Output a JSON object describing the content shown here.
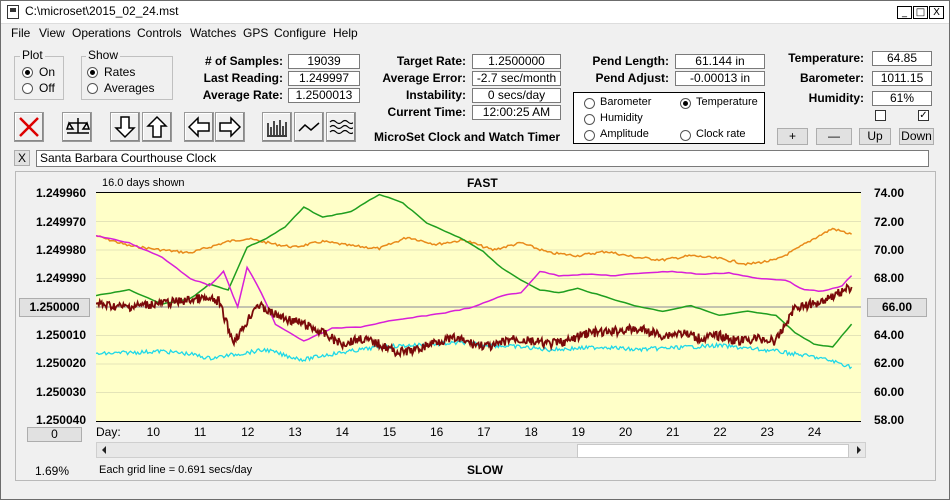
{
  "window": {
    "title": "C:\\microset\\2015_02_24.mst",
    "minimize": "_",
    "maximize": "□",
    "close": "X"
  },
  "menu": [
    "File",
    "View",
    "Operations",
    "Controls",
    "Watches",
    "GPS",
    "Configure",
    "Help"
  ],
  "plot_group": {
    "label": "Plot",
    "options": [
      "On",
      "Off"
    ],
    "selected": "On"
  },
  "show_group": {
    "label": "Show",
    "options": [
      "Rates",
      "Averages"
    ],
    "selected": "Rates"
  },
  "stats": {
    "samples_label": "# of Samples:",
    "samples": "19039",
    "last_reading_label": "Last Reading:",
    "last_reading": "1.249997",
    "average_rate_label": "Average Rate:",
    "average_rate": "1.2500013",
    "target_rate_label": "Target Rate:",
    "target_rate": "1.2500000",
    "average_error_label": "Average Error:",
    "average_error": "-2.7 sec/month",
    "instability_label": "Instability:",
    "instability": "0 secs/day",
    "current_time_label": "Current Time:",
    "current_time": "12:00:25 AM",
    "pend_length_label": "Pend Length:",
    "pend_length": "61.144 in",
    "pend_adjust_label": "Pend Adjust:",
    "pend_adjust": "-0.00013 in",
    "temperature_label": "Temperature:",
    "temperature": "64.85",
    "barometer_label": "Barometer:",
    "barometer": "1011.15",
    "humidity_label": "Humidity:",
    "humidity": "61%"
  },
  "app_caption": "MicroSet Clock and Watch Timer",
  "sensor_options": [
    {
      "label": "Barometer",
      "color": "#e88a1a",
      "selected": false
    },
    {
      "label": "Temperature",
      "color": "#1f9e1f",
      "selected": true
    },
    {
      "label": "Humidity",
      "color": "#d81fd8",
      "selected": false
    },
    {
      "label": "Amplitude",
      "color": "#1fd8e8",
      "selected": false
    },
    {
      "label": "Clock rate",
      "color": "#000000",
      "selected": false
    }
  ],
  "adjust_buttons": {
    "plus": "+",
    "minus": "—",
    "up": "Up",
    "down": "Down"
  },
  "checkboxes": [
    {
      "checked": false
    },
    {
      "checked": true
    }
  ],
  "clock_name": {
    "close": "X",
    "value": "Santa Barbara Courthouse Clock"
  },
  "graph": {
    "days_shown": "16.0 days shown",
    "fast_label": "FAST",
    "slow_label": "SLOW",
    "grid_note": "Each grid line = 0.691 secs/day",
    "percent": "1.69%",
    "left_button": "0",
    "right_button": "66.00",
    "center_rate": "1.250000",
    "day_label": "Day:"
  },
  "chart_data": {
    "type": "line",
    "x_unit": "day",
    "xlim": [
      8.8,
      25.0
    ],
    "day_ticks": [
      10,
      11,
      12,
      13,
      14,
      15,
      16,
      17,
      18,
      19,
      20,
      21,
      22,
      23,
      24
    ],
    "left_axis": {
      "ticks": [
        "1.249960",
        "1.249970",
        "1.249980",
        "1.249990",
        "1.250000",
        "1.250010",
        "1.250020",
        "1.250030",
        "1.250040"
      ],
      "ylim": [
        1.24996,
        1.25004
      ],
      "inverted": true
    },
    "right_axis": {
      "ticks": [
        "74.00",
        "72.00",
        "70.00",
        "68.00",
        "66.00",
        "64.00",
        "62.00",
        "60.00",
        "58.00"
      ],
      "ylim": [
        58.0,
        74.0
      ]
    },
    "series": [
      {
        "name": "Barometer",
        "color": "#e88a1a",
        "axis": "right",
        "x": [
          8.8,
          9.5,
          10.2,
          10.8,
          11.2,
          11.6,
          12.0,
          12.6,
          13.0,
          13.6,
          14.2,
          14.8,
          15.4,
          16.0,
          16.6,
          17.2,
          17.8,
          18.4,
          19.0,
          19.6,
          20.2,
          20.8,
          21.4,
          22.0,
          22.6,
          23.2,
          23.6,
          24.0,
          24.4,
          24.8
        ],
        "y": [
          71.0,
          70.3,
          70.0,
          69.8,
          70.2,
          70.6,
          70.8,
          70.4,
          70.2,
          70.6,
          70.3,
          70.1,
          70.9,
          70.4,
          70.7,
          70.0,
          70.5,
          69.8,
          69.6,
          69.9,
          69.5,
          69.3,
          69.6,
          69.4,
          69.0,
          69.3,
          70.0,
          70.8,
          71.5,
          71.1
        ]
      },
      {
        "name": "Temperature",
        "color": "#1f9e1f",
        "axis": "right",
        "x": [
          8.8,
          9.5,
          10.2,
          10.8,
          11.2,
          11.6,
          12.0,
          12.4,
          12.8,
          13.2,
          13.6,
          14.2,
          14.8,
          15.3,
          15.8,
          16.2,
          16.6,
          17.0,
          17.4,
          17.8,
          18.2,
          18.6,
          19.0,
          19.6,
          20.2,
          20.8,
          21.4,
          22.0,
          22.6,
          23.2,
          23.6,
          24.0,
          24.4,
          24.8
        ],
        "y": [
          66.8,
          67.2,
          66.2,
          66.6,
          67.6,
          67.2,
          70.2,
          70.8,
          71.6,
          73.0,
          72.3,
          72.7,
          73.9,
          73.3,
          71.9,
          71.3,
          70.7,
          69.9,
          68.7,
          67.9,
          67.2,
          67.0,
          67.3,
          66.7,
          66.1,
          65.7,
          66.1,
          65.4,
          65.7,
          65.4,
          64.2,
          63.4,
          63.2,
          64.8
        ]
      },
      {
        "name": "Humidity",
        "color": "#d81fd8",
        "axis": "right",
        "x": [
          8.8,
          9.5,
          10.2,
          10.8,
          11.2,
          11.5,
          11.8,
          12.0,
          12.3,
          12.6,
          12.9,
          13.2,
          13.8,
          14.4,
          15.0,
          15.6,
          16.2,
          16.8,
          17.4,
          17.8,
          18.2,
          18.6,
          19.2,
          19.8,
          20.4,
          21.0,
          21.6,
          22.2,
          22.8,
          23.4,
          23.8,
          24.2,
          24.6,
          24.8
        ],
        "y": [
          71.0,
          70.5,
          69.5,
          68.0,
          67.5,
          68.5,
          66.0,
          68.8,
          67.0,
          64.8,
          64.2,
          63.6,
          64.5,
          64.6,
          65.0,
          65.3,
          65.6,
          66.0,
          66.8,
          67.0,
          68.5,
          68.2,
          68.3,
          68.2,
          68.4,
          68.5,
          68.3,
          68.4,
          68.0,
          67.9,
          67.2,
          67.1,
          67.5,
          68.2
        ]
      },
      {
        "name": "Amplitude",
        "color": "#1fd8e8",
        "axis": "right",
        "x": [
          8.8,
          9.5,
          10.2,
          10.8,
          11.2,
          11.6,
          12.0,
          12.4,
          12.8,
          13.2,
          13.6,
          14.2,
          14.8,
          15.4,
          16.0,
          16.6,
          17.2,
          17.8,
          18.4,
          19.0,
          19.6,
          20.2,
          20.8,
          21.4,
          22.0,
          22.6,
          23.2,
          23.6,
          24.0,
          24.4,
          24.8
        ],
        "y": [
          62.7,
          62.8,
          62.9,
          62.7,
          62.4,
          62.6,
          62.8,
          63.0,
          62.6,
          62.3,
          62.6,
          62.9,
          63.2,
          63.3,
          63.4,
          63.5,
          63.3,
          63.2,
          63.0,
          63.1,
          63.2,
          63.0,
          63.1,
          63.2,
          63.3,
          63.1,
          62.9,
          62.7,
          62.5,
          62.2,
          61.8
        ]
      },
      {
        "name": "Clock rate",
        "color": "#7a0a0a",
        "axis": "left",
        "x": [
          8.8,
          9.4,
          10.0,
          10.6,
          11.0,
          11.4,
          11.7,
          11.9,
          12.2,
          12.5,
          12.8,
          13.2,
          13.6,
          14.0,
          14.4,
          14.8,
          15.2,
          15.6,
          16.0,
          16.4,
          16.8,
          17.2,
          17.6,
          18.0,
          18.4,
          18.8,
          19.2,
          19.6,
          20.0,
          20.4,
          20.8,
          21.2,
          21.6,
          22.0,
          22.4,
          22.8,
          23.2,
          23.4,
          23.6,
          24.0,
          24.4,
          24.8
        ],
        "y": [
          1.249999,
          1.25,
          1.249999,
          1.249998,
          1.249997,
          1.249998,
          1.250012,
          1.250008,
          1.249999,
          1.250002,
          1.250004,
          1.250006,
          1.250009,
          1.250013,
          1.250011,
          1.250013,
          1.250016,
          1.250015,
          1.250012,
          1.250011,
          1.250013,
          1.250014,
          1.250011,
          1.250012,
          1.250013,
          1.250012,
          1.250009,
          1.250009,
          1.250008,
          1.250008,
          1.25001,
          1.250009,
          1.250011,
          1.25001,
          1.250012,
          1.250011,
          1.250012,
          1.250006,
          1.25,
          1.249999,
          1.249996,
          1.249993
        ]
      }
    ]
  }
}
